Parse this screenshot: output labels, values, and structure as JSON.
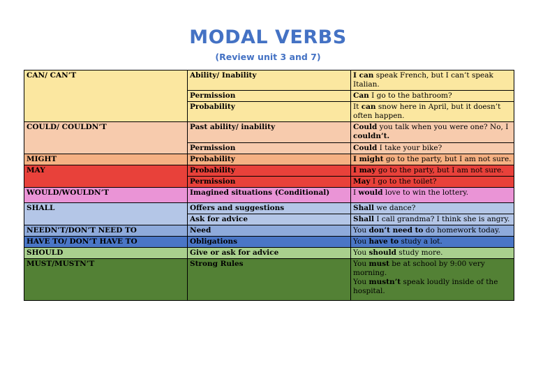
{
  "title": "MODAL VERBS",
  "subtitle": "(Review unit 3 and 7)",
  "rows": [
    {
      "verb": "CAN/ CAN’T",
      "use": "Ability/ Inability",
      "ex_bold": "I can",
      "ex_rest": " speak French, but I can’t speak Italian."
    },
    {
      "use": "Permission",
      "ex_bold": "Can",
      "ex_rest": " I go to the bathroom?"
    },
    {
      "use": "Probability",
      "ex_pre": "It ",
      "ex_bold": "can",
      "ex_rest": " snow here in April, but it doesn’t often happen."
    },
    {
      "verb": "COULD/ COULDN’T",
      "use": "Past ability/ inability",
      "ex_bold": "Could",
      "ex_rest": " you talk when you were one? No, I ",
      "ex_bold2": "couldn’t."
    },
    {
      "use": "Permission",
      "ex_bold": "Could",
      "ex_rest": " I take your bike?"
    },
    {
      "verb": "MIGHT",
      "use": "Probability",
      "ex_bold": "I might",
      "ex_rest": " go to the party, but I am not sure."
    },
    {
      "verb": "MAY",
      "use": "Probability",
      "ex_bold": "I may",
      "ex_rest": " go to the party, but I am not sure."
    },
    {
      "use": "Permission",
      "ex_bold": "May",
      "ex_rest": " I go to the toilet?"
    },
    {
      "verb": "WOULD/WOULDN’T",
      "use": "Imagined situations (Conditional)",
      "ex_pre": "I ",
      "ex_bold": "would",
      "ex_rest": " love to win the lottery."
    },
    {
      "verb": "SHALL",
      "use": "Offers and suggestions",
      "ex_bold": "Shall",
      "ex_rest": " we dance?"
    },
    {
      "use": "Ask for advice",
      "ex_bold": "Shall",
      "ex_rest": " I call grandma? I think she is angry."
    },
    {
      "verb": "NEEDN’T/DON’T NEED TO",
      "use": "Need",
      "ex_pre": "You ",
      "ex_bold": "don’t need to",
      "ex_rest": " do homework today."
    },
    {
      "verb": "HAVE TO/ DON’T HAVE TO",
      "use": "Obligations",
      "ex_pre": "You ",
      "ex_bold": "have to",
      "ex_rest": " study a lot."
    },
    {
      "verb": "SHOULD",
      "use": "Give or ask for advice",
      "ex_pre": "You ",
      "ex_bold": "should",
      "ex_rest": " study more."
    },
    {
      "verb": "MUST/MUSTN’T",
      "use": "Strong Rules",
      "ex_pre": "You ",
      "ex_bold": "must",
      "ex_rest": " be at school by 9:00 very morning.",
      "ex2_pre": "You ",
      "ex2_bold": "mustn’t",
      "ex2_rest": " speak loudly inside of the hospital."
    }
  ],
  "colors": {
    "title": "#4472c4",
    "can": "#fbe7a0",
    "could": "#f7cbad",
    "might": "#f5b183",
    "may": "#e8413a",
    "would": "#ea94d6",
    "shall": "#b4c6e7",
    "neednt": "#8eaadb",
    "have_to": "#4a76c6",
    "should": "#a9d08e",
    "must": "#538135"
  }
}
